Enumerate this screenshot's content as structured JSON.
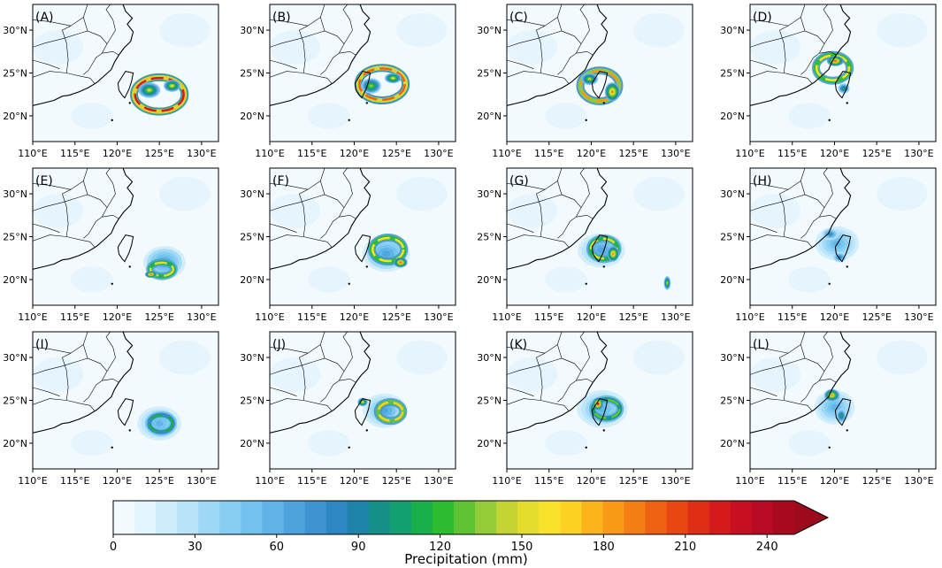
{
  "chart_data": {
    "type": "heatmap",
    "description_layout": "3x4 grid of map panels",
    "colorbar": {
      "label": "Precipitation (mm)",
      "min": 0,
      "max": 250,
      "ticks": [
        0,
        30,
        60,
        90,
        120,
        150,
        180,
        210,
        240
      ],
      "tick_labels": [
        "0",
        "30",
        "60",
        "90",
        "120",
        "150",
        "180",
        "210",
        "240"
      ],
      "extend": "max",
      "colors": [
        "#f2fafe",
        "#e2f4fd",
        "#cfecfb",
        "#b8e3f9",
        "#9fd8f6",
        "#88cdf2",
        "#72c1ee",
        "#5fb3e6",
        "#4ea3dc",
        "#3f93d2",
        "#2f86c4",
        "#1f82a8",
        "#159089",
        "#12a070",
        "#18b04a",
        "#2bbc2f",
        "#5ec433",
        "#93cc36",
        "#c4d533",
        "#e5dd2c",
        "#f9e32a",
        "#fcd122",
        "#fbb51b",
        "#f99a17",
        "#f47d14",
        "#ef6112",
        "#e84612",
        "#e02d16",
        "#d51a1c",
        "#c70f21",
        "#b90b23",
        "#a8091f"
      ],
      "extend_color": "#9c0b1c"
    },
    "axes": {
      "xticks": [
        110,
        115,
        120,
        125,
        130
      ],
      "xtick_labels": [
        "110°E",
        "115°E",
        "120°E",
        "125°E",
        "130°E"
      ],
      "yticks": [
        20,
        25,
        30
      ],
      "ytick_labels": [
        "20°N",
        "25°N",
        "30°N"
      ],
      "xlim": [
        110,
        132
      ],
      "ylim": [
        17,
        33
      ]
    },
    "panels": [
      {
        "label": "(A)",
        "storm": [
          [
            125.0,
            22.5,
            3.0,
            2.0,
            220,
            "ring"
          ],
          [
            123.8,
            23.0,
            1.3,
            0.9,
            150,
            "blob"
          ],
          [
            126.5,
            23.5,
            1.0,
            0.7,
            160,
            "blob"
          ]
        ]
      },
      {
        "label": "(B)",
        "storm": [
          [
            123.3,
            23.7,
            2.8,
            1.9,
            200,
            "ring"
          ],
          [
            122.0,
            23.5,
            1.2,
            0.9,
            140,
            "blob"
          ],
          [
            124.6,
            24.4,
            1.0,
            0.6,
            160,
            "blob"
          ]
        ]
      },
      {
        "label": "(C)",
        "storm": [
          [
            121.0,
            23.5,
            2.3,
            1.8,
            180,
            "ring"
          ],
          [
            122.5,
            22.8,
            0.9,
            1.1,
            190,
            "blob"
          ],
          [
            119.8,
            24.3,
            1.0,
            0.7,
            150,
            "blob"
          ]
        ]
      },
      {
        "label": "(D)",
        "storm": [
          [
            119.8,
            25.6,
            2.0,
            1.5,
            160,
            "ring"
          ],
          [
            120.1,
            26.4,
            1.0,
            0.6,
            200,
            "blob"
          ],
          [
            121.1,
            23.2,
            0.7,
            0.6,
            110,
            "blob"
          ]
        ]
      },
      {
        "label": "(E)",
        "storm": [
          [
            125.6,
            22.0,
            2.5,
            1.9,
            70,
            "disk"
          ],
          [
            125.3,
            21.2,
            1.4,
            0.8,
            150,
            "ring"
          ],
          [
            124.0,
            20.6,
            0.7,
            0.4,
            200,
            "blob"
          ]
        ]
      },
      {
        "label": "(F)",
        "storm": [
          [
            123.8,
            23.0,
            2.8,
            2.1,
            70,
            "disk"
          ],
          [
            124.0,
            23.5,
            1.9,
            1.4,
            160,
            "ring"
          ],
          [
            125.5,
            22.0,
            0.8,
            0.6,
            200,
            "blob"
          ]
        ]
      },
      {
        "label": "(G)",
        "storm": [
          [
            121.2,
            23.4,
            2.8,
            2.0,
            65,
            "disk"
          ],
          [
            121.5,
            23.6,
            1.6,
            1.2,
            150,
            "ring"
          ],
          [
            122.6,
            23.0,
            0.7,
            0.9,
            190,
            "blob"
          ],
          [
            129.0,
            19.6,
            0.4,
            0.8,
            150,
            "blob"
          ]
        ]
      },
      {
        "label": "(H)",
        "storm": [
          [
            120.3,
            24.2,
            2.6,
            2.0,
            60,
            "disk"
          ],
          [
            119.5,
            25.3,
            1.0,
            0.7,
            85,
            "blob"
          ],
          [
            120.6,
            22.6,
            0.8,
            0.6,
            90,
            "blob"
          ]
        ]
      },
      {
        "label": "(I)",
        "storm": [
          [
            125.0,
            22.3,
            2.6,
            2.0,
            60,
            "disk"
          ],
          [
            125.2,
            22.3,
            1.4,
            1.0,
            110,
            "ring"
          ]
        ]
      },
      {
        "label": "(J)",
        "storm": [
          [
            123.6,
            23.8,
            2.6,
            2.0,
            65,
            "disk"
          ],
          [
            124.3,
            23.7,
            1.5,
            1.1,
            170,
            "ring"
          ],
          [
            121.0,
            24.8,
            0.6,
            0.5,
            160,
            "blob"
          ]
        ]
      },
      {
        "label": "(K)",
        "storm": [
          [
            121.3,
            24.0,
            3.0,
            2.2,
            55,
            "disk"
          ],
          [
            121.8,
            24.0,
            1.6,
            1.1,
            130,
            "ring"
          ],
          [
            120.8,
            24.6,
            0.6,
            0.7,
            230,
            "blob"
          ]
        ]
      },
      {
        "label": "(L)",
        "storm": [
          [
            120.0,
            24.2,
            2.4,
            2.0,
            60,
            "disk"
          ],
          [
            119.7,
            25.6,
            0.9,
            0.7,
            180,
            "blob"
          ],
          [
            120.8,
            23.2,
            0.6,
            0.8,
            110,
            "blob"
          ]
        ]
      }
    ]
  }
}
